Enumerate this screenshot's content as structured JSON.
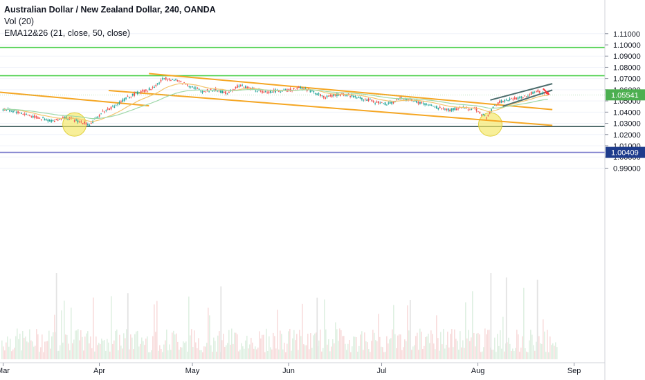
{
  "legend": {
    "title": "Australian Dollar / New Zealand Dollar, 240, OANDA",
    "vol": "Vol (20)",
    "ema": "EMA12&26 (21, close, 50, close)"
  },
  "chart_data": {
    "type": "candlestick",
    "symbol": "AUDNZD",
    "timeframe": "240",
    "source": "OANDA",
    "y_ticks": [
      "1.11000",
      "1.10000",
      "1.09000",
      "1.08000",
      "1.07000",
      "1.06000",
      "1.05000",
      "1.04000",
      "1.03000",
      "1.02000",
      "1.01000",
      "1.00000",
      "0.99000"
    ],
    "x_ticks": [
      "Mar",
      "Apr",
      "May",
      "Jun",
      "Jul",
      "Aug",
      "Sep"
    ],
    "ylim": [
      0.9855,
      1.1155
    ],
    "current_price": {
      "label": "1.05541",
      "value": 1.05541,
      "color": "#4caf50"
    },
    "marker_price": {
      "label": "1.00409",
      "value": 1.00409,
      "color": "#1e3c8c"
    },
    "price_path": [
      [
        "2019-03-01",
        1.0425
      ],
      [
        "2019-03-05",
        1.0405
      ],
      [
        "2019-03-09",
        1.0375
      ],
      [
        "2019-03-13",
        1.0345
      ],
      [
        "2019-03-17",
        1.032
      ],
      [
        "2019-03-21",
        1.0355
      ],
      [
        "2019-03-25",
        1.032
      ],
      [
        "2019-03-29",
        1.029
      ],
      [
        "2019-04-02",
        1.04
      ],
      [
        "2019-04-06",
        1.0455
      ],
      [
        "2019-04-10",
        1.053
      ],
      [
        "2019-04-14",
        1.058
      ],
      [
        "2019-04-18",
        1.061
      ],
      [
        "2019-04-22",
        1.0705
      ],
      [
        "2019-04-26",
        1.068
      ],
      [
        "2019-04-30",
        1.064
      ],
      [
        "2019-05-04",
        1.0585
      ],
      [
        "2019-05-08",
        1.06
      ],
      [
        "2019-05-12",
        1.057
      ],
      [
        "2019-05-16",
        1.064
      ],
      [
        "2019-05-20",
        1.061
      ],
      [
        "2019-05-24",
        1.0575
      ],
      [
        "2019-05-28",
        1.059
      ],
      [
        "2019-06-01",
        1.0595
      ],
      [
        "2019-06-05",
        1.062
      ],
      [
        "2019-06-09",
        1.058
      ],
      [
        "2019-06-13",
        1.053
      ],
      [
        "2019-06-17",
        1.056
      ],
      [
        "2019-06-21",
        1.055
      ],
      [
        "2019-06-25",
        1.052
      ],
      [
        "2019-06-29",
        1.049
      ],
      [
        "2019-07-03",
        1.047
      ],
      [
        "2019-07-07",
        1.052
      ],
      [
        "2019-07-11",
        1.0505
      ],
      [
        "2019-07-15",
        1.047
      ],
      [
        "2019-07-19",
        1.044
      ],
      [
        "2019-07-23",
        1.042
      ],
      [
        "2019-07-27",
        1.044
      ],
      [
        "2019-07-31",
        1.043
      ],
      [
        "2019-08-04",
        1.035
      ],
      [
        "2019-08-06",
        1.045
      ],
      [
        "2019-08-08",
        1.049
      ],
      [
        "2019-08-12",
        1.0515
      ],
      [
        "2019-08-16",
        1.054
      ],
      [
        "2019-08-20",
        1.059
      ],
      [
        "2019-08-24",
        1.0554
      ]
    ],
    "volume_spikes": [
      [
        "2019-03-18",
        1.0
      ],
      [
        "2019-04-10",
        0.55
      ],
      [
        "2019-05-10",
        0.7
      ],
      [
        "2019-06-10",
        0.45
      ],
      [
        "2019-07-10",
        0.4
      ],
      [
        "2019-08-05",
        1.0
      ],
      [
        "2019-08-10",
        0.9
      ],
      [
        "2019-08-20",
        0.85
      ]
    ],
    "horizontal_lines": [
      {
        "value": 1.0977,
        "color": "#4cd04c"
      },
      {
        "value": 1.0725,
        "color": "#4cd04c"
      },
      {
        "value": 1.0272,
        "color": "#2f4f4f"
      },
      {
        "value": 1.00409,
        "color": "#7a7acc"
      }
    ],
    "trendlines": [
      {
        "from": [
          "2019-02-28",
          1.0578
        ],
        "to": [
          "2019-04-17",
          1.0457
        ],
        "color": "#f5a623"
      },
      {
        "from": [
          "2019-04-04",
          1.0593
        ],
        "to": [
          "2019-08-25",
          1.0282
        ],
        "color": "#f5a623"
      },
      {
        "from": [
          "2019-04-17",
          1.0744
        ],
        "to": [
          "2019-08-25",
          1.0423
        ],
        "color": "#f5a623"
      },
      {
        "from": [
          "2019-08-09",
          1.0452
        ],
        "to": [
          "2019-08-25",
          1.0597
        ],
        "color": "#4a6b6b"
      },
      {
        "from": [
          "2019-08-05",
          1.0508
        ],
        "to": [
          "2019-08-25",
          1.0654
        ],
        "color": "#4a6b6b"
      }
    ],
    "highlight_circles": [
      {
        "at": [
          "2019-03-24",
          1.029
        ],
        "color": "#f5e663"
      },
      {
        "at": [
          "2019-08-05",
          1.029
        ],
        "color": "#f5e663"
      }
    ],
    "annotation_arrow": {
      "from": [
        "2019-08-22",
        1.061
      ],
      "to": [
        "2019-08-24",
        1.0555
      ],
      "color": "#ff3b3b"
    }
  }
}
